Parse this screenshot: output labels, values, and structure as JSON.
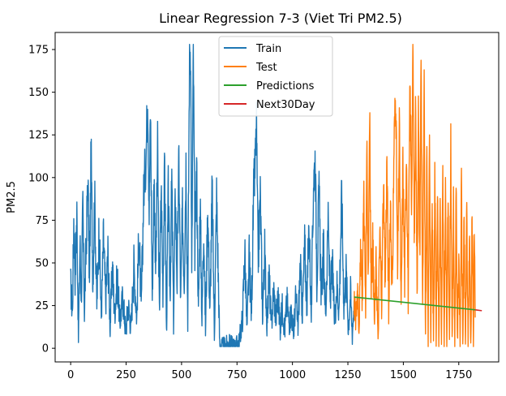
{
  "chart_data": {
    "type": "line",
    "title": "Linear Regression 7-3 (Viet Tri PM2.5)",
    "xlabel": "",
    "ylabel": "PM2.5",
    "xlim": [
      -70,
      1930
    ],
    "ylim": [
      -8,
      185
    ],
    "x_ticks": [
      0,
      250,
      500,
      750,
      1000,
      1250,
      1500,
      1750
    ],
    "y_ticks": [
      0,
      25,
      50,
      75,
      100,
      125,
      150,
      175
    ],
    "grid": false,
    "legend_placement": "top-center",
    "series": [
      {
        "name": "Train",
        "color": "#1f77b4",
        "anchors": [
          [
            0,
            37
          ],
          [
            8,
            20
          ],
          [
            14,
            76
          ],
          [
            20,
            44
          ],
          [
            28,
            79
          ],
          [
            35,
            5
          ],
          [
            42,
            62
          ],
          [
            48,
            30
          ],
          [
            55,
            82
          ],
          [
            62,
            22
          ],
          [
            70,
            60
          ],
          [
            78,
            100
          ],
          [
            85,
            35
          ],
          [
            92,
            117
          ],
          [
            100,
            40
          ],
          [
            108,
            90
          ],
          [
            118,
            25
          ],
          [
            128,
            70
          ],
          [
            138,
            18
          ],
          [
            148,
            65
          ],
          [
            158,
            28
          ],
          [
            168,
            55
          ],
          [
            178,
            12
          ],
          [
            188,
            48
          ],
          [
            198,
            20
          ],
          [
            210,
            42
          ],
          [
            222,
            15
          ],
          [
            235,
            30
          ],
          [
            248,
            10
          ],
          [
            260,
            25
          ],
          [
            272,
            12
          ],
          [
            285,
            48
          ],
          [
            298,
            18
          ],
          [
            308,
            68
          ],
          [
            318,
            22
          ],
          [
            330,
            95
          ],
          [
            340,
            112
          ],
          [
            347,
            153
          ],
          [
            354,
            80
          ],
          [
            360,
            140
          ],
          [
            368,
            30
          ],
          [
            376,
            100
          ],
          [
            384,
            45
          ],
          [
            392,
            118
          ],
          [
            400,
            20
          ],
          [
            408,
            95
          ],
          [
            416,
            35
          ],
          [
            424,
            110
          ],
          [
            432,
            8
          ],
          [
            440,
            92
          ],
          [
            448,
            30
          ],
          [
            456,
            100
          ],
          [
            464,
            15
          ],
          [
            472,
            92
          ],
          [
            480,
            38
          ],
          [
            488,
            112
          ],
          [
            496,
            25
          ],
          [
            504,
            80
          ],
          [
            512,
            40
          ],
          [
            520,
            110
          ],
          [
            528,
            18
          ],
          [
            536,
            175
          ],
          [
            541,
            176
          ],
          [
            546,
            40
          ],
          [
            553,
            176
          ],
          [
            560,
            60
          ],
          [
            568,
            108
          ],
          [
            576,
            20
          ],
          [
            584,
            88
          ],
          [
            592,
            15
          ],
          [
            600,
            75
          ],
          [
            608,
            10
          ],
          [
            618,
            82
          ],
          [
            628,
            20
          ],
          [
            638,
            95
          ],
          [
            648,
            8
          ],
          [
            658,
            90
          ],
          [
            666,
            40
          ],
          [
            672,
            2
          ],
          [
            680,
            1
          ],
          [
            700,
            2
          ],
          [
            720,
            3
          ],
          [
            740,
            1
          ],
          [
            760,
            4
          ],
          [
            775,
            18
          ],
          [
            785,
            58
          ],
          [
            795,
            10
          ],
          [
            805,
            52
          ],
          [
            815,
            20
          ],
          [
            825,
            90
          ],
          [
            832,
            108
          ],
          [
            838,
            130
          ],
          [
            845,
            50
          ],
          [
            855,
            90
          ],
          [
            865,
            20
          ],
          [
            875,
            55
          ],
          [
            885,
            15
          ],
          [
            895,
            42
          ],
          [
            905,
            12
          ],
          [
            915,
            35
          ],
          [
            925,
            18
          ],
          [
            935,
            30
          ],
          [
            945,
            12
          ],
          [
            955,
            25
          ],
          [
            965,
            10
          ],
          [
            975,
            28
          ],
          [
            985,
            15
          ],
          [
            995,
            22
          ],
          [
            1005,
            8
          ],
          [
            1015,
            30
          ],
          [
            1025,
            12
          ],
          [
            1035,
            48
          ],
          [
            1045,
            20
          ],
          [
            1055,
            60
          ],
          [
            1065,
            25
          ],
          [
            1075,
            75
          ],
          [
            1085,
            18
          ],
          [
            1095,
            98
          ],
          [
            1103,
            112
          ],
          [
            1110,
            40
          ],
          [
            1120,
            92
          ],
          [
            1130,
            30
          ],
          [
            1140,
            58
          ],
          [
            1150,
            18
          ],
          [
            1160,
            75
          ],
          [
            1170,
            30
          ],
          [
            1180,
            48
          ],
          [
            1190,
            15
          ],
          [
            1200,
            38
          ],
          [
            1210,
            22
          ],
          [
            1222,
            90
          ],
          [
            1232,
            25
          ],
          [
            1242,
            45
          ],
          [
            1252,
            12
          ],
          [
            1262,
            32
          ],
          [
            1270,
            8
          ],
          [
            1278,
            28
          ]
        ]
      },
      {
        "name": "Test",
        "color": "#ff7f0e",
        "anchors": [
          [
            1278,
            28
          ],
          [
            1286,
            16
          ],
          [
            1294,
            38
          ],
          [
            1300,
            12
          ],
          [
            1308,
            55
          ],
          [
            1315,
            30
          ],
          [
            1322,
            95
          ],
          [
            1330,
            20
          ],
          [
            1336,
            113
          ],
          [
            1342,
            45
          ],
          [
            1348,
            140
          ],
          [
            1354,
            40
          ],
          [
            1362,
            60
          ],
          [
            1370,
            15
          ],
          [
            1378,
            52
          ],
          [
            1386,
            2
          ],
          [
            1394,
            70
          ],
          [
            1402,
            25
          ],
          [
            1410,
            95
          ],
          [
            1418,
            35
          ],
          [
            1426,
            112
          ],
          [
            1434,
            20
          ],
          [
            1442,
            88
          ],
          [
            1450,
            30
          ],
          [
            1458,
            120
          ],
          [
            1466,
            152
          ],
          [
            1474,
            40
          ],
          [
            1482,
            130
          ],
          [
            1490,
            20
          ],
          [
            1498,
            108
          ],
          [
            1506,
            40
          ],
          [
            1514,
            120
          ],
          [
            1522,
            30
          ],
          [
            1530,
            155
          ],
          [
            1537,
            85
          ],
          [
            1543,
            178
          ],
          [
            1550,
            60
          ],
          [
            1556,
            150
          ],
          [
            1562,
            30
          ],
          [
            1568,
            140
          ],
          [
            1574,
            50
          ],
          [
            1580,
            174
          ],
          [
            1587,
            20
          ],
          [
            1594,
            150
          ],
          [
            1600,
            5
          ],
          [
            1606,
            110
          ],
          [
            1612,
            1
          ],
          [
            1618,
            130
          ],
          [
            1624,
            2
          ],
          [
            1630,
            90
          ],
          [
            1636,
            1
          ],
          [
            1642,
            112
          ],
          [
            1648,
            2
          ],
          [
            1654,
            98
          ],
          [
            1660,
            1
          ],
          [
            1666,
            90
          ],
          [
            1672,
            2
          ],
          [
            1678,
            100
          ],
          [
            1684,
            1
          ],
          [
            1690,
            92
          ],
          [
            1696,
            2
          ],
          [
            1702,
            95
          ],
          [
            1708,
            1
          ],
          [
            1714,
            125
          ],
          [
            1720,
            2
          ],
          [
            1726,
            80
          ],
          [
            1732,
            1
          ],
          [
            1738,
            90
          ],
          [
            1744,
            2
          ],
          [
            1750,
            60
          ],
          [
            1756,
            1
          ],
          [
            1762,
            95
          ],
          [
            1768,
            2
          ],
          [
            1774,
            70
          ],
          [
            1780,
            1
          ],
          [
            1786,
            80
          ],
          [
            1792,
            2
          ],
          [
            1798,
            68
          ],
          [
            1804,
            1
          ],
          [
            1810,
            78
          ],
          [
            1816,
            2
          ],
          [
            1820,
            80
          ],
          [
            1824,
            18
          ]
        ]
      },
      {
        "name": "Predictions",
        "color": "#2ca02c",
        "x": [
          1278,
          1824
        ],
        "y": [
          30,
          22.5
        ]
      },
      {
        "name": "Next30Day",
        "color": "#d62728",
        "x": [
          1824,
          1854
        ],
        "y": [
          22.5,
          22
        ]
      }
    ]
  }
}
